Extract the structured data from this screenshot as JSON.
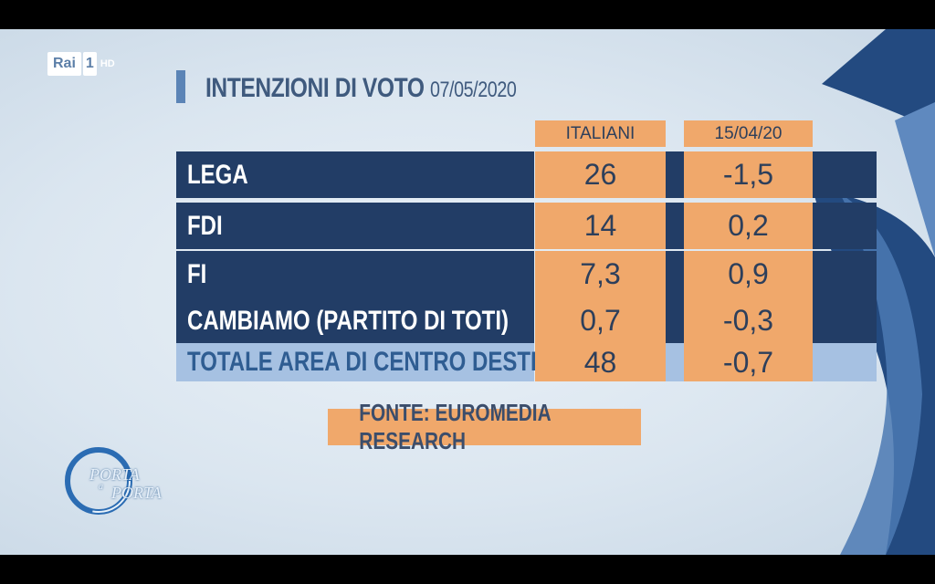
{
  "channel": {
    "name": "Rai",
    "number": "1",
    "quality": "HD"
  },
  "show_logo": {
    "line1": "PORTA",
    "line2": "PORTA",
    "connector": "a"
  },
  "title": {
    "text": "INTENZIONI DI VOTO",
    "date": "07/05/2020"
  },
  "chart_data": {
    "type": "table",
    "columns": [
      "ITALIANI",
      "15/04/20"
    ],
    "rows": [
      {
        "label": "LEGA",
        "italiani": "26",
        "change": "-1,5",
        "highlight": false
      },
      {
        "label": "FDI",
        "italiani": "14",
        "change": "0,2",
        "highlight": false
      },
      {
        "label": "FI",
        "italiani": "7,3",
        "change": "0,9",
        "highlight": false
      },
      {
        "label": "CAMBIAMO (PARTITO DI TOTI)",
        "italiani": "0,7",
        "change": "-0,3",
        "highlight": false
      },
      {
        "label": "TOTALE AREA DI CENTRO DESTRA",
        "italiani": "48",
        "change": "-0,7",
        "highlight": true
      }
    ]
  },
  "source": "FONTE: EUROMEDIA RESEARCH",
  "colors": {
    "row_bg": "#223d66",
    "value_bg": "#f0a86b",
    "total_bg": "#a6c1e2",
    "accent": "#5b84b6"
  }
}
